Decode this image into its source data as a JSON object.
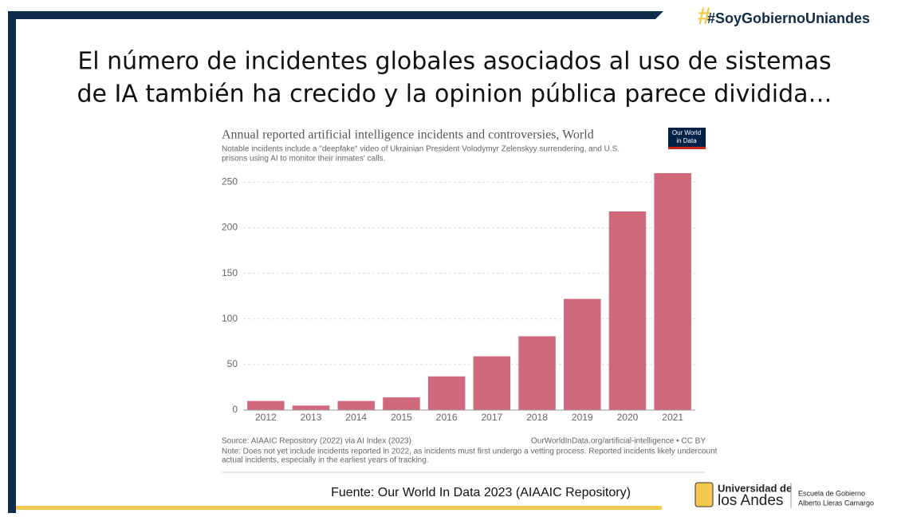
{
  "brand": "#SoyGobiernoUniandes",
  "heading": [
    "El número de incidentes globales asociados al uso de sistemas",
    "de IA también ha crecido y la opinion pública parece dividida…"
  ],
  "chart_data": {
    "type": "bar",
    "title": "Annual reported artificial intelligence incidents and controversies, World",
    "subtitle": [
      "Notable incidents include a \"deepfake\" video of Ukrainian President Volodymyr Zelenskyy surrendering, and U.S.",
      "prisons using AI to monitor their inmates' calls."
    ],
    "logo": [
      "Our World",
      "in Data"
    ],
    "categories": [
      "2012",
      "2013",
      "2014",
      "2015",
      "2016",
      "2017",
      "2018",
      "2019",
      "2020",
      "2021"
    ],
    "values": [
      10,
      5,
      10,
      14,
      37,
      59,
      81,
      122,
      218,
      260
    ],
    "color": "#d0697b",
    "ylim": [
      0,
      260
    ],
    "yticks": [
      0,
      50,
      100,
      150,
      200,
      250
    ],
    "grid": true,
    "source": "Source: AIAAIC Repository (2022) via AI Index (2023)",
    "url": "OurWorldInData.org/artificial-intelligence • CC BY",
    "note": [
      "Note: Does not yet include incidents reported in 2022, as incidents must first undergo a vetting process. Reported incidents likely undercount",
      "actual incidents, especially in the earliest years of tracking."
    ]
  },
  "footer": {
    "source": "Fuente: Our World In Data 2023 (AIAAIC Repository)",
    "university": [
      "Universidad de",
      "los Andes"
    ],
    "school": [
      "Escuela de Gobierno",
      "Alberto Lleras Camargo"
    ]
  }
}
